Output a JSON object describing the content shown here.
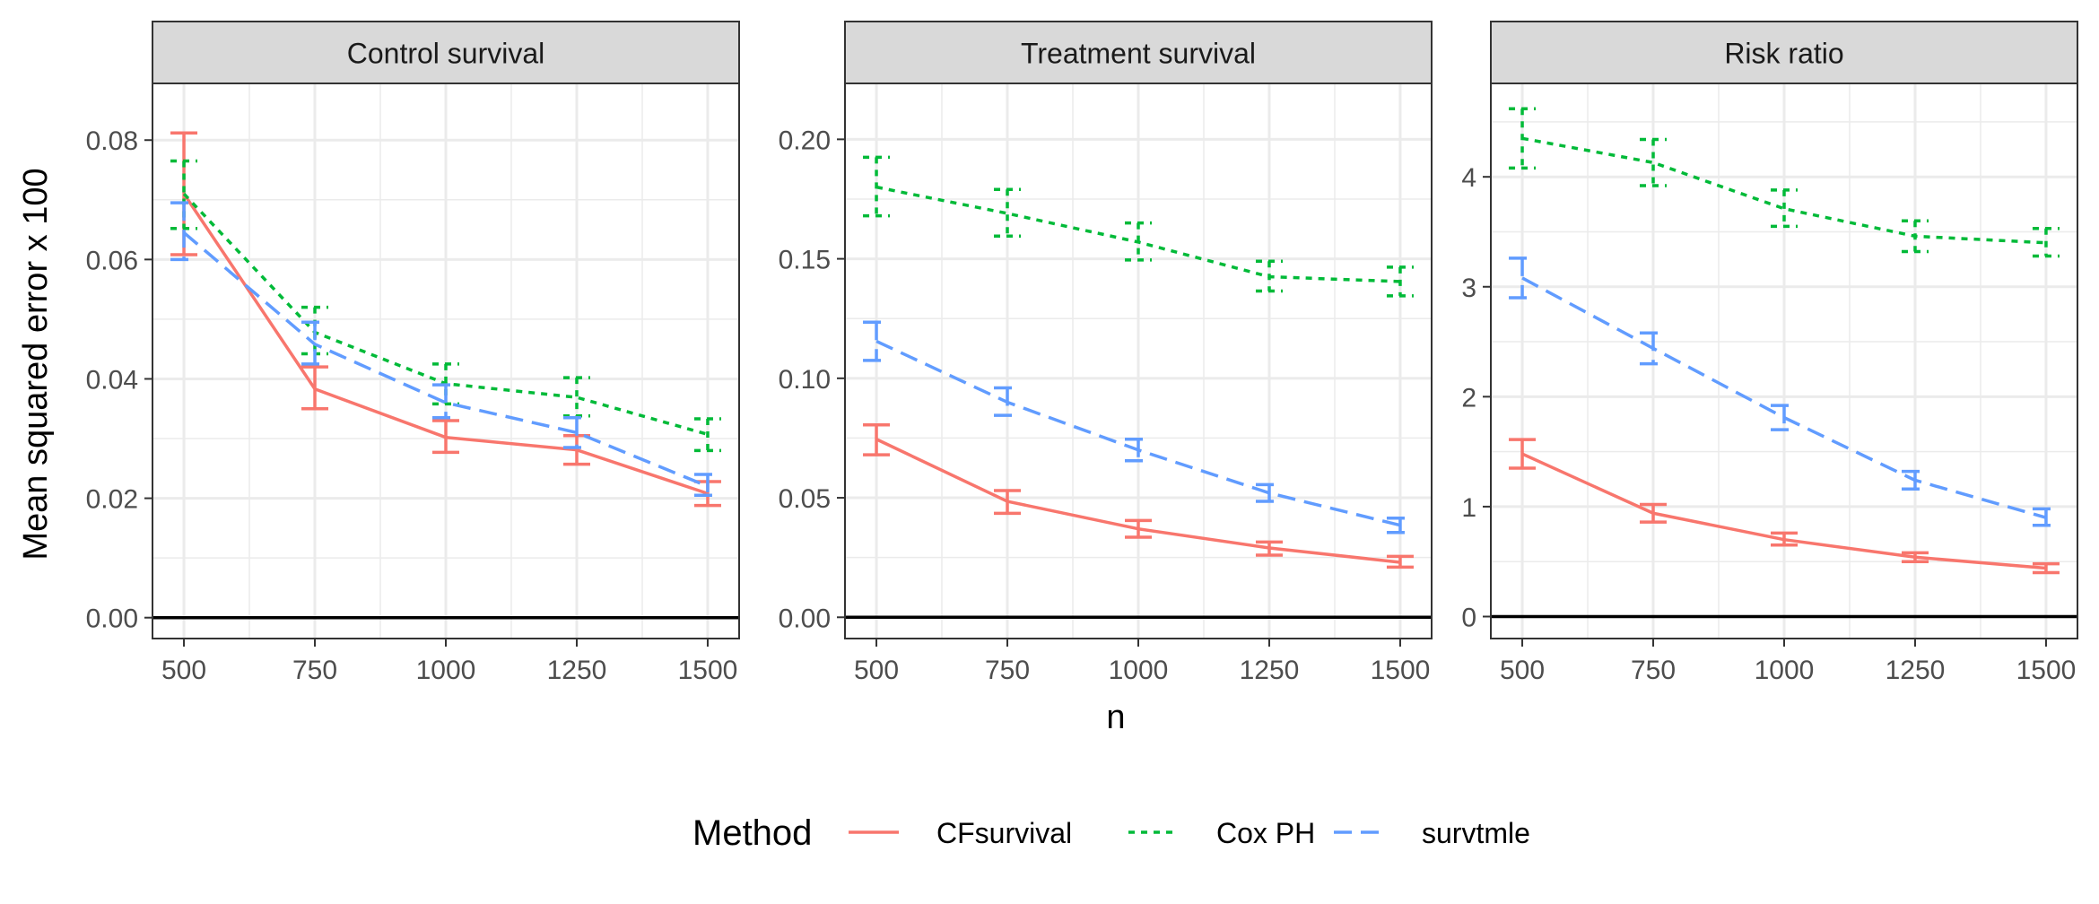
{
  "figure": {
    "ylabel": "Mean squared error x 100",
    "xlabel": "n"
  },
  "legend": {
    "title": "Method",
    "entries": [
      {
        "name": "CFsurvival",
        "color": "#F8766D",
        "dash": "solid"
      },
      {
        "name": "Cox PH",
        "color": "#00BA38",
        "dash": "dotted"
      },
      {
        "name": "survtmle",
        "color": "#619CFF",
        "dash": "dashed"
      }
    ]
  },
  "chart_data": [
    {
      "type": "line",
      "title": "Control survival",
      "x": [
        500,
        750,
        1000,
        1250,
        1500
      ],
      "x_ticks": [
        "500",
        "750",
        "1000",
        "1250",
        "1500"
      ],
      "xlim": [
        440,
        1560
      ],
      "ylim": [
        -0.0035,
        0.0895
      ],
      "y_ticks": [
        0,
        0.02,
        0.04,
        0.06,
        0.08
      ],
      "y_tick_labels": [
        "0.00",
        "0.02",
        "0.04",
        "0.06",
        "0.08"
      ],
      "series": [
        {
          "name": "CFsurvival",
          "values": [
            0.071,
            0.0383,
            0.0302,
            0.0281,
            0.0208
          ],
          "lower": [
            0.0608,
            0.035,
            0.0277,
            0.0257,
            0.0188
          ],
          "upper": [
            0.0812,
            0.042,
            0.033,
            0.0305,
            0.0228
          ]
        },
        {
          "name": "Cox PH",
          "values": [
            0.071,
            0.0478,
            0.0392,
            0.0369,
            0.0307
          ],
          "lower": [
            0.0652,
            0.0442,
            0.0358,
            0.0338,
            0.028
          ],
          "upper": [
            0.0765,
            0.052,
            0.0425,
            0.0402,
            0.0333
          ]
        },
        {
          "name": "survtmle",
          "values": [
            0.0645,
            0.0458,
            0.036,
            0.031,
            0.022
          ],
          "lower": [
            0.06,
            0.0425,
            0.0335,
            0.0285,
            0.0205
          ],
          "upper": [
            0.0695,
            0.0495,
            0.039,
            0.0335,
            0.024
          ]
        }
      ]
    },
    {
      "type": "line",
      "title": "Treatment survival",
      "x": [
        500,
        750,
        1000,
        1250,
        1500
      ],
      "x_ticks": [
        "500",
        "750",
        "1000",
        "1250",
        "1500"
      ],
      "xlim": [
        440,
        1560
      ],
      "ylim": [
        -0.0089,
        0.2234
      ],
      "y_ticks": [
        0,
        0.05,
        0.1,
        0.15,
        0.2
      ],
      "y_tick_labels": [
        "0.00",
        "0.05",
        "0.10",
        "0.15",
        "0.20"
      ],
      "series": [
        {
          "name": "CFsurvival",
          "values": [
            0.0745,
            0.0485,
            0.037,
            0.029,
            0.023
          ],
          "lower": [
            0.068,
            0.0435,
            0.0335,
            0.026,
            0.021
          ],
          "upper": [
            0.0805,
            0.053,
            0.0405,
            0.0315,
            0.0255
          ]
        },
        {
          "name": "Cox PH",
          "values": [
            0.18,
            0.169,
            0.157,
            0.1425,
            0.1405
          ],
          "lower": [
            0.168,
            0.1595,
            0.1495,
            0.1365,
            0.1345
          ],
          "upper": [
            0.1925,
            0.179,
            0.165,
            0.149,
            0.1465
          ]
        },
        {
          "name": "survtmle",
          "values": [
            0.1155,
            0.09,
            0.07,
            0.052,
            0.0385
          ],
          "lower": [
            0.1075,
            0.0845,
            0.0655,
            0.0485,
            0.0355
          ],
          "upper": [
            0.1235,
            0.096,
            0.0745,
            0.0555,
            0.0415
          ]
        }
      ]
    },
    {
      "type": "line",
      "title": "Risk ratio",
      "x": [
        500,
        750,
        1000,
        1250,
        1500
      ],
      "x_ticks": [
        "500",
        "750",
        "1000",
        "1250",
        "1500"
      ],
      "xlim": [
        440,
        1560
      ],
      "ylim": [
        -0.2,
        4.85
      ],
      "y_ticks": [
        0,
        1,
        2,
        3,
        4
      ],
      "y_tick_labels": [
        "0",
        "1",
        "2",
        "3",
        "4"
      ],
      "series": [
        {
          "name": "CFsurvival",
          "values": [
            1.48,
            0.94,
            0.7,
            0.54,
            0.44
          ],
          "lower": [
            1.35,
            0.86,
            0.65,
            0.5,
            0.4
          ],
          "upper": [
            1.61,
            1.02,
            0.76,
            0.58,
            0.48
          ]
        },
        {
          "name": "Cox PH",
          "values": [
            4.35,
            4.13,
            3.71,
            3.46,
            3.4
          ],
          "lower": [
            4.08,
            3.92,
            3.55,
            3.32,
            3.28
          ],
          "upper": [
            4.62,
            4.34,
            3.88,
            3.6,
            3.53
          ]
        },
        {
          "name": "survtmle",
          "values": [
            3.08,
            2.44,
            1.81,
            1.24,
            0.9
          ],
          "lower": [
            2.9,
            2.3,
            1.7,
            1.16,
            0.83
          ],
          "upper": [
            3.26,
            2.58,
            1.92,
            1.32,
            0.98
          ]
        }
      ]
    }
  ]
}
